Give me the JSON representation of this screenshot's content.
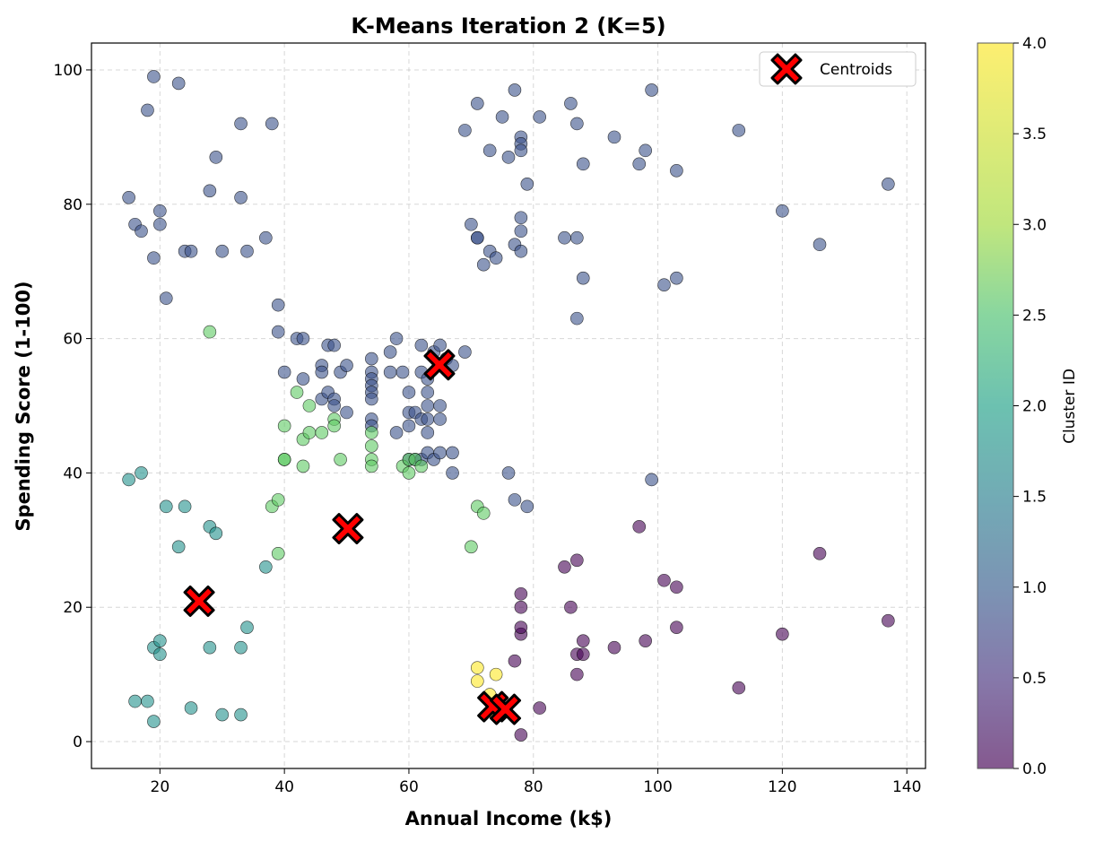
{
  "chart_data": {
    "type": "scatter",
    "title": "K-Means Iteration 2 (K=5)",
    "xlabel": "Annual Income (k$)",
    "ylabel": "Spending Score (1-100)",
    "xlim": [
      9,
      143
    ],
    "ylim": [
      -4,
      104
    ],
    "xticks": [
      20,
      40,
      60,
      80,
      100,
      120,
      140
    ],
    "yticks": [
      0,
      20,
      40,
      60,
      80,
      100
    ],
    "grid": true,
    "legend": {
      "placement": "top-right",
      "entries": [
        "Centroids"
      ]
    },
    "colorbar": {
      "label": "Cluster ID",
      "range": [
        0,
        4
      ],
      "ticks": [
        "0.0",
        "0.5",
        "1.0",
        "1.5",
        "2.0",
        "2.5",
        "3.0",
        "3.5",
        "4.0"
      ],
      "colormap": "viridis"
    },
    "cluster_colors": [
      "#440154",
      "#3b528b",
      "#21918c",
      "#5ec962",
      "#fde725"
    ],
    "points": [
      {
        "cluster": 0,
        "xy": [
          [
            78,
            1
          ],
          [
            81,
            5
          ],
          [
            77,
            12
          ],
          [
            78,
            16
          ],
          [
            78,
            17
          ],
          [
            78,
            20
          ],
          [
            78,
            22
          ],
          [
            85,
            26
          ],
          [
            87,
            27
          ],
          [
            86,
            20
          ],
          [
            88,
            15
          ],
          [
            87,
            13
          ],
          [
            88,
            13
          ],
          [
            87,
            10
          ],
          [
            93,
            14
          ],
          [
            98,
            15
          ],
          [
            97,
            32
          ],
          [
            101,
            24
          ],
          [
            103,
            23
          ],
          [
            103,
            17
          ],
          [
            113,
            8
          ],
          [
            120,
            16
          ],
          [
            126,
            28
          ],
          [
            137,
            18
          ]
        ]
      },
      {
        "cluster": 1,
        "xy": [
          [
            15,
            81
          ],
          [
            16,
            77
          ],
          [
            17,
            76
          ],
          [
            19,
            72
          ],
          [
            20,
            79
          ],
          [
            20,
            77
          ],
          [
            21,
            66
          ],
          [
            18,
            94
          ],
          [
            19,
            99
          ],
          [
            23,
            98
          ],
          [
            24,
            73
          ],
          [
            25,
            73
          ],
          [
            28,
            82
          ],
          [
            29,
            87
          ],
          [
            30,
            73
          ],
          [
            33,
            92
          ],
          [
            33,
            81
          ],
          [
            34,
            73
          ],
          [
            37,
            75
          ],
          [
            38,
            92
          ],
          [
            39,
            65
          ],
          [
            39,
            61
          ],
          [
            40,
            55
          ],
          [
            42,
            60
          ],
          [
            43,
            60
          ],
          [
            43,
            54
          ],
          [
            46,
            56
          ],
          [
            46,
            55
          ],
          [
            46,
            51
          ],
          [
            47,
            52
          ],
          [
            47,
            59
          ],
          [
            48,
            59
          ],
          [
            48,
            51
          ],
          [
            48,
            50
          ],
          [
            49,
            55
          ],
          [
            50,
            56
          ],
          [
            50,
            49
          ],
          [
            54,
            57
          ],
          [
            54,
            55
          ],
          [
            54,
            54
          ],
          [
            54,
            53
          ],
          [
            54,
            52
          ],
          [
            54,
            51
          ],
          [
            54,
            48
          ],
          [
            54,
            47
          ],
          [
            57,
            58
          ],
          [
            57,
            55
          ],
          [
            58,
            60
          ],
          [
            58,
            46
          ],
          [
            59,
            55
          ],
          [
            60,
            52
          ],
          [
            60,
            49
          ],
          [
            60,
            47
          ],
          [
            60,
            42
          ],
          [
            61,
            49
          ],
          [
            61,
            42
          ],
          [
            62,
            59
          ],
          [
            62,
            55
          ],
          [
            62,
            48
          ],
          [
            62,
            42
          ],
          [
            63,
            54
          ],
          [
            63,
            52
          ],
          [
            63,
            50
          ],
          [
            63,
            48
          ],
          [
            63,
            46
          ],
          [
            63,
            43
          ],
          [
            64,
            42
          ],
          [
            64,
            58
          ],
          [
            65,
            59
          ],
          [
            65,
            50
          ],
          [
            65,
            48
          ],
          [
            65,
            43
          ],
          [
            66,
            57
          ],
          [
            67,
            56
          ],
          [
            67,
            43
          ],
          [
            67,
            40
          ],
          [
            69,
            58
          ],
          [
            69,
            91
          ],
          [
            70,
            77
          ],
          [
            71,
            95
          ],
          [
            71,
            75
          ],
          [
            71,
            75
          ],
          [
            72,
            71
          ],
          [
            73,
            88
          ],
          [
            73,
            73
          ],
          [
            74,
            72
          ],
          [
            75,
            93
          ],
          [
            76,
            87
          ],
          [
            76,
            40
          ],
          [
            77,
            97
          ],
          [
            77,
            74
          ],
          [
            77,
            36
          ],
          [
            78,
            90
          ],
          [
            78,
            89
          ],
          [
            78,
            88
          ],
          [
            78,
            78
          ],
          [
            78,
            76
          ],
          [
            78,
            73
          ],
          [
            79,
            83
          ],
          [
            79,
            35
          ],
          [
            81,
            93
          ],
          [
            85,
            75
          ],
          [
            86,
            95
          ],
          [
            87,
            92
          ],
          [
            87,
            75
          ],
          [
            87,
            63
          ],
          [
            88,
            86
          ],
          [
            88,
            69
          ],
          [
            93,
            90
          ],
          [
            97,
            86
          ],
          [
            98,
            88
          ],
          [
            99,
            97
          ],
          [
            99,
            39
          ],
          [
            101,
            68
          ],
          [
            103,
            85
          ],
          [
            103,
            69
          ],
          [
            113,
            91
          ],
          [
            120,
            79
          ],
          [
            126,
            74
          ],
          [
            137,
            83
          ]
        ]
      },
      {
        "cluster": 2,
        "xy": [
          [
            15,
            39
          ],
          [
            16,
            6
          ],
          [
            17,
            40
          ],
          [
            18,
            6
          ],
          [
            19,
            3
          ],
          [
            19,
            14
          ],
          [
            20,
            15
          ],
          [
            20,
            13
          ],
          [
            21,
            35
          ],
          [
            23,
            29
          ],
          [
            24,
            35
          ],
          [
            25,
            5
          ],
          [
            28,
            32
          ],
          [
            28,
            14
          ],
          [
            29,
            31
          ],
          [
            30,
            4
          ],
          [
            33,
            4
          ],
          [
            33,
            14
          ],
          [
            34,
            17
          ],
          [
            37,
            26
          ]
        ]
      },
      {
        "cluster": 3,
        "xy": [
          [
            28,
            61
          ],
          [
            38,
            35
          ],
          [
            39,
            36
          ],
          [
            39,
            28
          ],
          [
            40,
            47
          ],
          [
            40,
            42
          ],
          [
            40,
            42
          ],
          [
            42,
            52
          ],
          [
            43,
            45
          ],
          [
            43,
            41
          ],
          [
            44,
            50
          ],
          [
            44,
            46
          ],
          [
            46,
            46
          ],
          [
            48,
            48
          ],
          [
            48,
            47
          ],
          [
            49,
            42
          ],
          [
            54,
            46
          ],
          [
            54,
            44
          ],
          [
            54,
            42
          ],
          [
            54,
            41
          ],
          [
            59,
            41
          ],
          [
            60,
            42
          ],
          [
            60,
            40
          ],
          [
            61,
            42
          ],
          [
            62,
            41
          ],
          [
            70,
            29
          ],
          [
            71,
            35
          ],
          [
            72,
            34
          ]
        ]
      },
      {
        "cluster": 4,
        "xy": [
          [
            71,
            11
          ],
          [
            71,
            9
          ],
          [
            73,
            7
          ],
          [
            74,
            10
          ],
          [
            74,
            4
          ]
        ]
      }
    ],
    "centroids": [
      [
        26.3,
        20.9
      ],
      [
        50.2,
        31.7
      ],
      [
        64.9,
        56.1
      ],
      [
        73.5,
        5.2
      ],
      [
        75.5,
        4.8
      ]
    ]
  }
}
